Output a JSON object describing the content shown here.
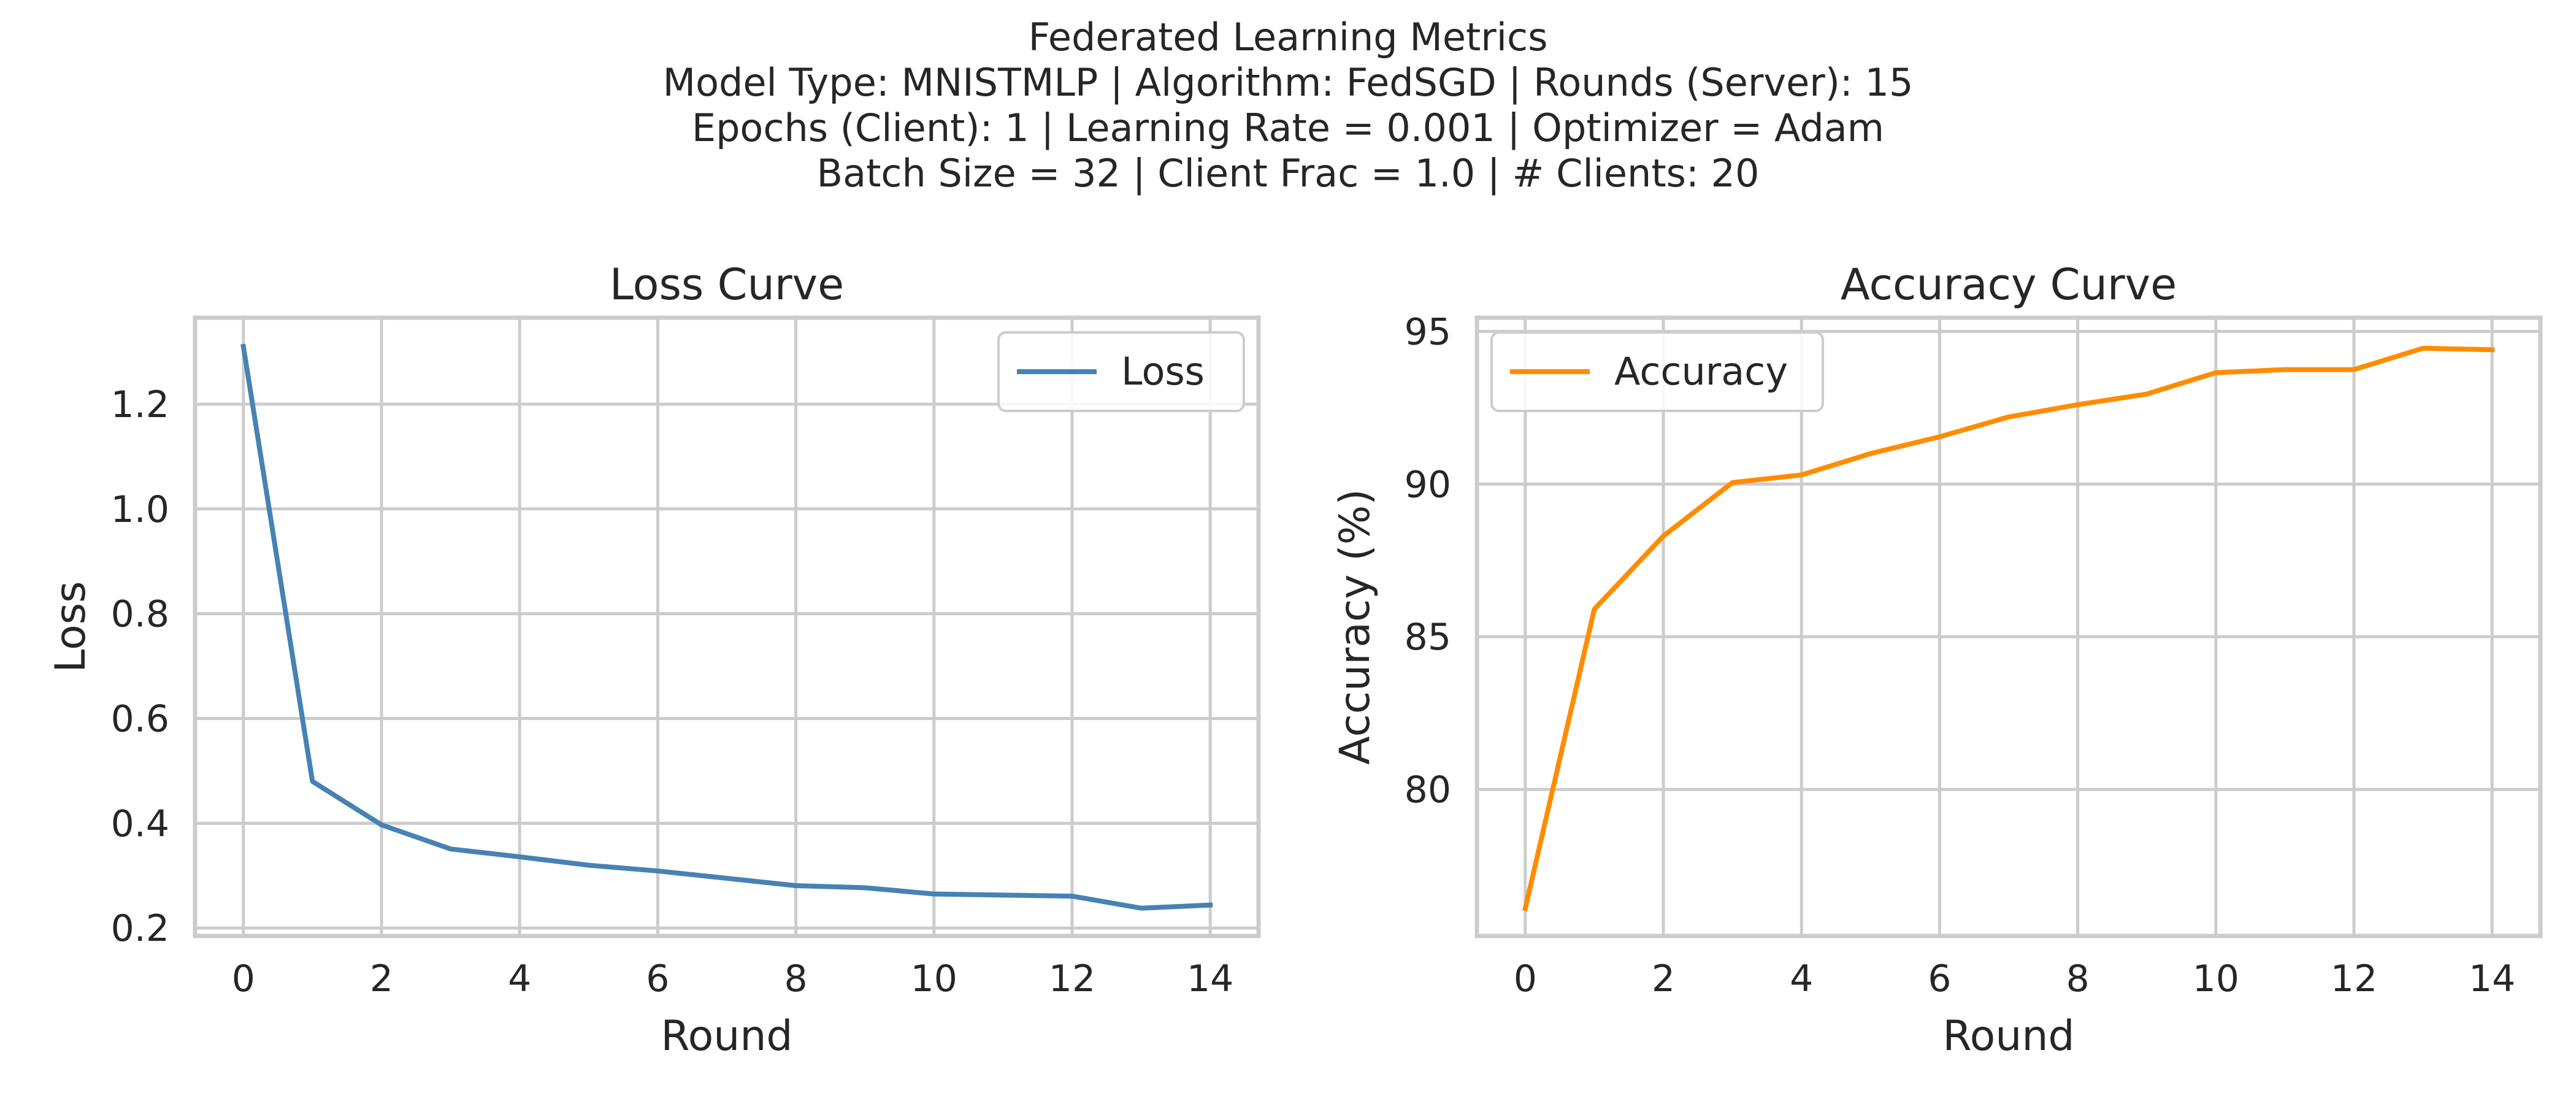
{
  "figure": {
    "title_lines": [
      "Federated Learning Metrics",
      "Model Type: MNISTMLP | Algorithm: FedSGD | Rounds (Server): 15",
      "Epochs (Client): 1 | Learning Rate = 0.001 | Optimizer = Adam",
      "Batch Size = 32 | Client Frac = 1.0 | # Clients: 20"
    ]
  },
  "chart_data": [
    {
      "type": "line",
      "title": "Loss Curve",
      "xlabel": "Round",
      "ylabel": "Loss",
      "x": [
        0,
        1,
        2,
        3,
        4,
        5,
        6,
        7,
        8,
        9,
        10,
        11,
        12,
        13,
        14
      ],
      "xticks": [
        0,
        2,
        4,
        6,
        8,
        10,
        12,
        14
      ],
      "yticks": [
        0.2,
        0.4,
        0.6,
        0.8,
        1.0,
        1.2
      ],
      "xlim": [
        -0.7,
        14.7
      ],
      "ylim": [
        0.185,
        1.365
      ],
      "grid": true,
      "legend_position": "top-right",
      "series": [
        {
          "name": "Loss",
          "color": "#4682b4",
          "values": [
            1.31,
            0.48,
            0.397,
            0.351,
            0.336,
            0.32,
            0.309,
            0.295,
            0.281,
            0.277,
            0.265,
            0.263,
            0.261,
            0.238,
            0.244
          ]
        }
      ]
    },
    {
      "type": "line",
      "title": "Accuracy Curve",
      "xlabel": "Round",
      "ylabel": "Accuracy (%)",
      "x": [
        0,
        1,
        2,
        3,
        4,
        5,
        6,
        7,
        8,
        9,
        10,
        11,
        12,
        13,
        14
      ],
      "xticks": [
        0,
        2,
        4,
        6,
        8,
        10,
        12,
        14
      ],
      "yticks": [
        80,
        85,
        90,
        95
      ],
      "xlim": [
        -0.7,
        14.7
      ],
      "ylim": [
        75.2,
        95.45
      ],
      "grid": true,
      "legend_position": "top-left",
      "series": [
        {
          "name": "Accuracy",
          "color": "#ff8c00",
          "values": [
            76.1,
            85.9,
            88.3,
            90.05,
            90.3,
            91.0,
            91.55,
            92.2,
            92.6,
            92.95,
            93.65,
            93.75,
            93.75,
            94.45,
            94.4
          ]
        }
      ]
    }
  ]
}
